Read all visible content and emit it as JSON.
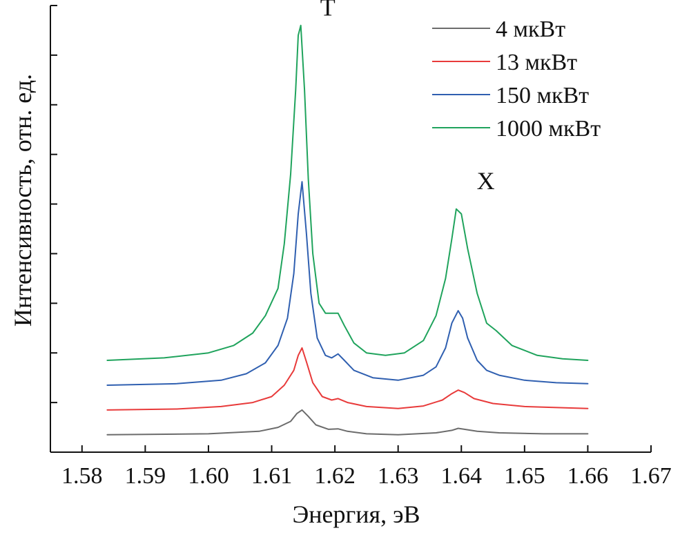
{
  "chart_data": {
    "type": "line",
    "title": "",
    "xlabel": "Энергия, эВ",
    "ylabel": "Интенсивность, отн. ед.",
    "xlim": [
      1.575,
      1.67
    ],
    "ylim": [
      0,
      9
    ],
    "x_ticks": [
      "1.58",
      "1.59",
      "1.60",
      "1.61",
      "1.62",
      "1.63",
      "1.64",
      "1.65",
      "1.66",
      "1.67"
    ],
    "y_ticks_labeled": false,
    "y_tick_count": 9,
    "grid": false,
    "legend_position": "top-right",
    "annotations": [
      {
        "text": "T",
        "x": 1.6145,
        "y": 8.8
      },
      {
        "text": "X",
        "x": 1.6395,
        "y": 5.3
      }
    ],
    "series": [
      {
        "name": "4 мкВт",
        "color": "#6b6b6b",
        "x": [
          1.584,
          1.6,
          1.608,
          1.611,
          1.613,
          1.614,
          1.6148,
          1.6158,
          1.617,
          1.619,
          1.6205,
          1.622,
          1.625,
          1.63,
          1.636,
          1.6385,
          1.6395,
          1.6405,
          1.6425,
          1.646,
          1.653,
          1.66
        ],
        "y": [
          0.35,
          0.37,
          0.42,
          0.5,
          0.62,
          0.78,
          0.85,
          0.72,
          0.55,
          0.46,
          0.47,
          0.42,
          0.37,
          0.35,
          0.39,
          0.44,
          0.48,
          0.46,
          0.42,
          0.39,
          0.37,
          0.37
        ]
      },
      {
        "name": "13 мкВт",
        "color": "#e83a3a",
        "x": [
          1.584,
          1.595,
          1.602,
          1.607,
          1.61,
          1.612,
          1.6135,
          1.6142,
          1.6148,
          1.6155,
          1.6165,
          1.618,
          1.6195,
          1.6205,
          1.622,
          1.625,
          1.63,
          1.634,
          1.637,
          1.6385,
          1.6395,
          1.6405,
          1.642,
          1.645,
          1.65,
          1.66
        ],
        "y": [
          0.85,
          0.87,
          0.92,
          1.0,
          1.12,
          1.35,
          1.65,
          1.95,
          2.1,
          1.82,
          1.4,
          1.12,
          1.05,
          1.08,
          1.0,
          0.92,
          0.88,
          0.93,
          1.05,
          1.18,
          1.25,
          1.2,
          1.08,
          0.98,
          0.92,
          0.88
        ]
      },
      {
        "name": "150 мкВт",
        "color": "#2f5fb0",
        "x": [
          1.584,
          1.595,
          1.602,
          1.606,
          1.609,
          1.611,
          1.6125,
          1.6135,
          1.6142,
          1.6148,
          1.6155,
          1.6162,
          1.6172,
          1.6185,
          1.6195,
          1.6205,
          1.6215,
          1.623,
          1.626,
          1.63,
          1.634,
          1.636,
          1.6375,
          1.6385,
          1.6395,
          1.6402,
          1.641,
          1.6425,
          1.644,
          1.646,
          1.65,
          1.655,
          1.66
        ],
        "y": [
          1.35,
          1.38,
          1.45,
          1.58,
          1.8,
          2.15,
          2.7,
          3.6,
          4.8,
          5.45,
          4.4,
          3.2,
          2.3,
          1.95,
          1.9,
          1.98,
          1.85,
          1.65,
          1.5,
          1.45,
          1.55,
          1.72,
          2.1,
          2.6,
          2.85,
          2.7,
          2.3,
          1.85,
          1.65,
          1.55,
          1.45,
          1.4,
          1.38
        ]
      },
      {
        "name": "1000 мкВт",
        "color": "#1fa35c",
        "x": [
          1.584,
          1.593,
          1.6,
          1.604,
          1.607,
          1.609,
          1.611,
          1.612,
          1.613,
          1.6138,
          1.6142,
          1.6146,
          1.6152,
          1.6158,
          1.6165,
          1.6175,
          1.6185,
          1.6195,
          1.6205,
          1.6215,
          1.623,
          1.625,
          1.628,
          1.631,
          1.634,
          1.636,
          1.6375,
          1.6385,
          1.6392,
          1.64,
          1.641,
          1.6425,
          1.644,
          1.6455,
          1.648,
          1.652,
          1.656,
          1.66
        ],
        "y": [
          1.85,
          1.9,
          2.0,
          2.15,
          2.4,
          2.75,
          3.3,
          4.2,
          5.6,
          7.3,
          8.4,
          8.6,
          7.3,
          5.5,
          4.0,
          3.0,
          2.8,
          2.8,
          2.8,
          2.55,
          2.2,
          2.0,
          1.95,
          2.0,
          2.25,
          2.75,
          3.5,
          4.3,
          4.9,
          4.8,
          4.1,
          3.2,
          2.6,
          2.45,
          2.15,
          1.95,
          1.88,
          1.85
        ]
      }
    ]
  }
}
